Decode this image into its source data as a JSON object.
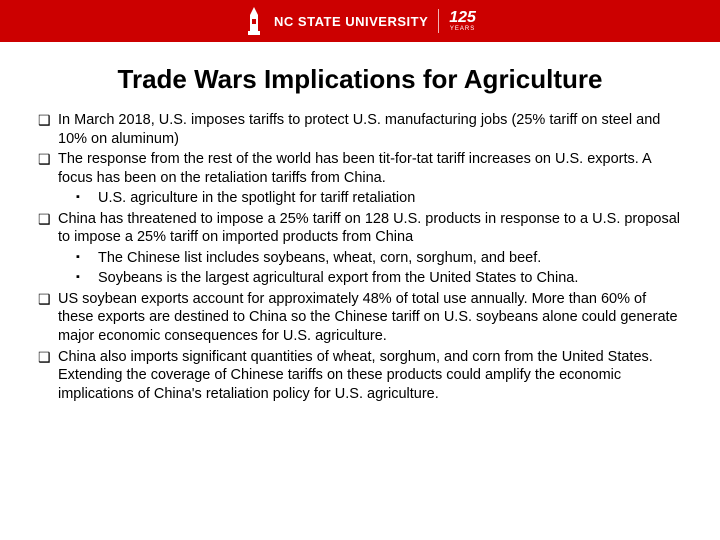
{
  "header": {
    "university": "NC STATE UNIVERSITY",
    "anniversary_number": "125",
    "anniversary_label": "YEARS",
    "bar_color": "#cc0000"
  },
  "slide": {
    "title": "Trade Wars Implications for Agriculture",
    "title_fontsize": 26,
    "body_fontsize": 14.5,
    "background_color": "#ffffff",
    "text_color": "#000000"
  },
  "bullets": [
    {
      "text": "In March 2018, U.S. imposes tariffs to protect U.S. manufacturing jobs (25% tariff on steel and 10% on aluminum)",
      "subs": []
    },
    {
      "text": "The response from the rest of the world has been tit-for-tat tariff increases on U.S. exports. A focus has been on the retaliation tariffs from China.",
      "subs": [
        "U.S. agriculture in the spotlight for tariff retaliation"
      ]
    },
    {
      "text": "China has threatened to impose a 25% tariff on 128 U.S. products in response to a U.S. proposal to impose a 25% tariff on imported products from China",
      "subs": [
        "The Chinese list includes soybeans, wheat, corn, sorghum, and beef.",
        "Soybeans is the largest agricultural export from the United States to China."
      ]
    },
    {
      "text": "US soybean exports account for approximately 48% of total use annually.  More than 60% of these exports are destined to China so the Chinese tariff on U.S. soybeans alone could generate major economic consequences for U.S. agriculture.",
      "subs": []
    },
    {
      "text": "China also imports significant quantities of wheat, sorghum, and corn from the United States. Extending the coverage of Chinese tariffs on these products could amplify the economic implications of China's retaliation policy for U.S. agriculture.",
      "subs": []
    }
  ],
  "markers": {
    "top_level": "❑",
    "sub_level": "▪"
  }
}
